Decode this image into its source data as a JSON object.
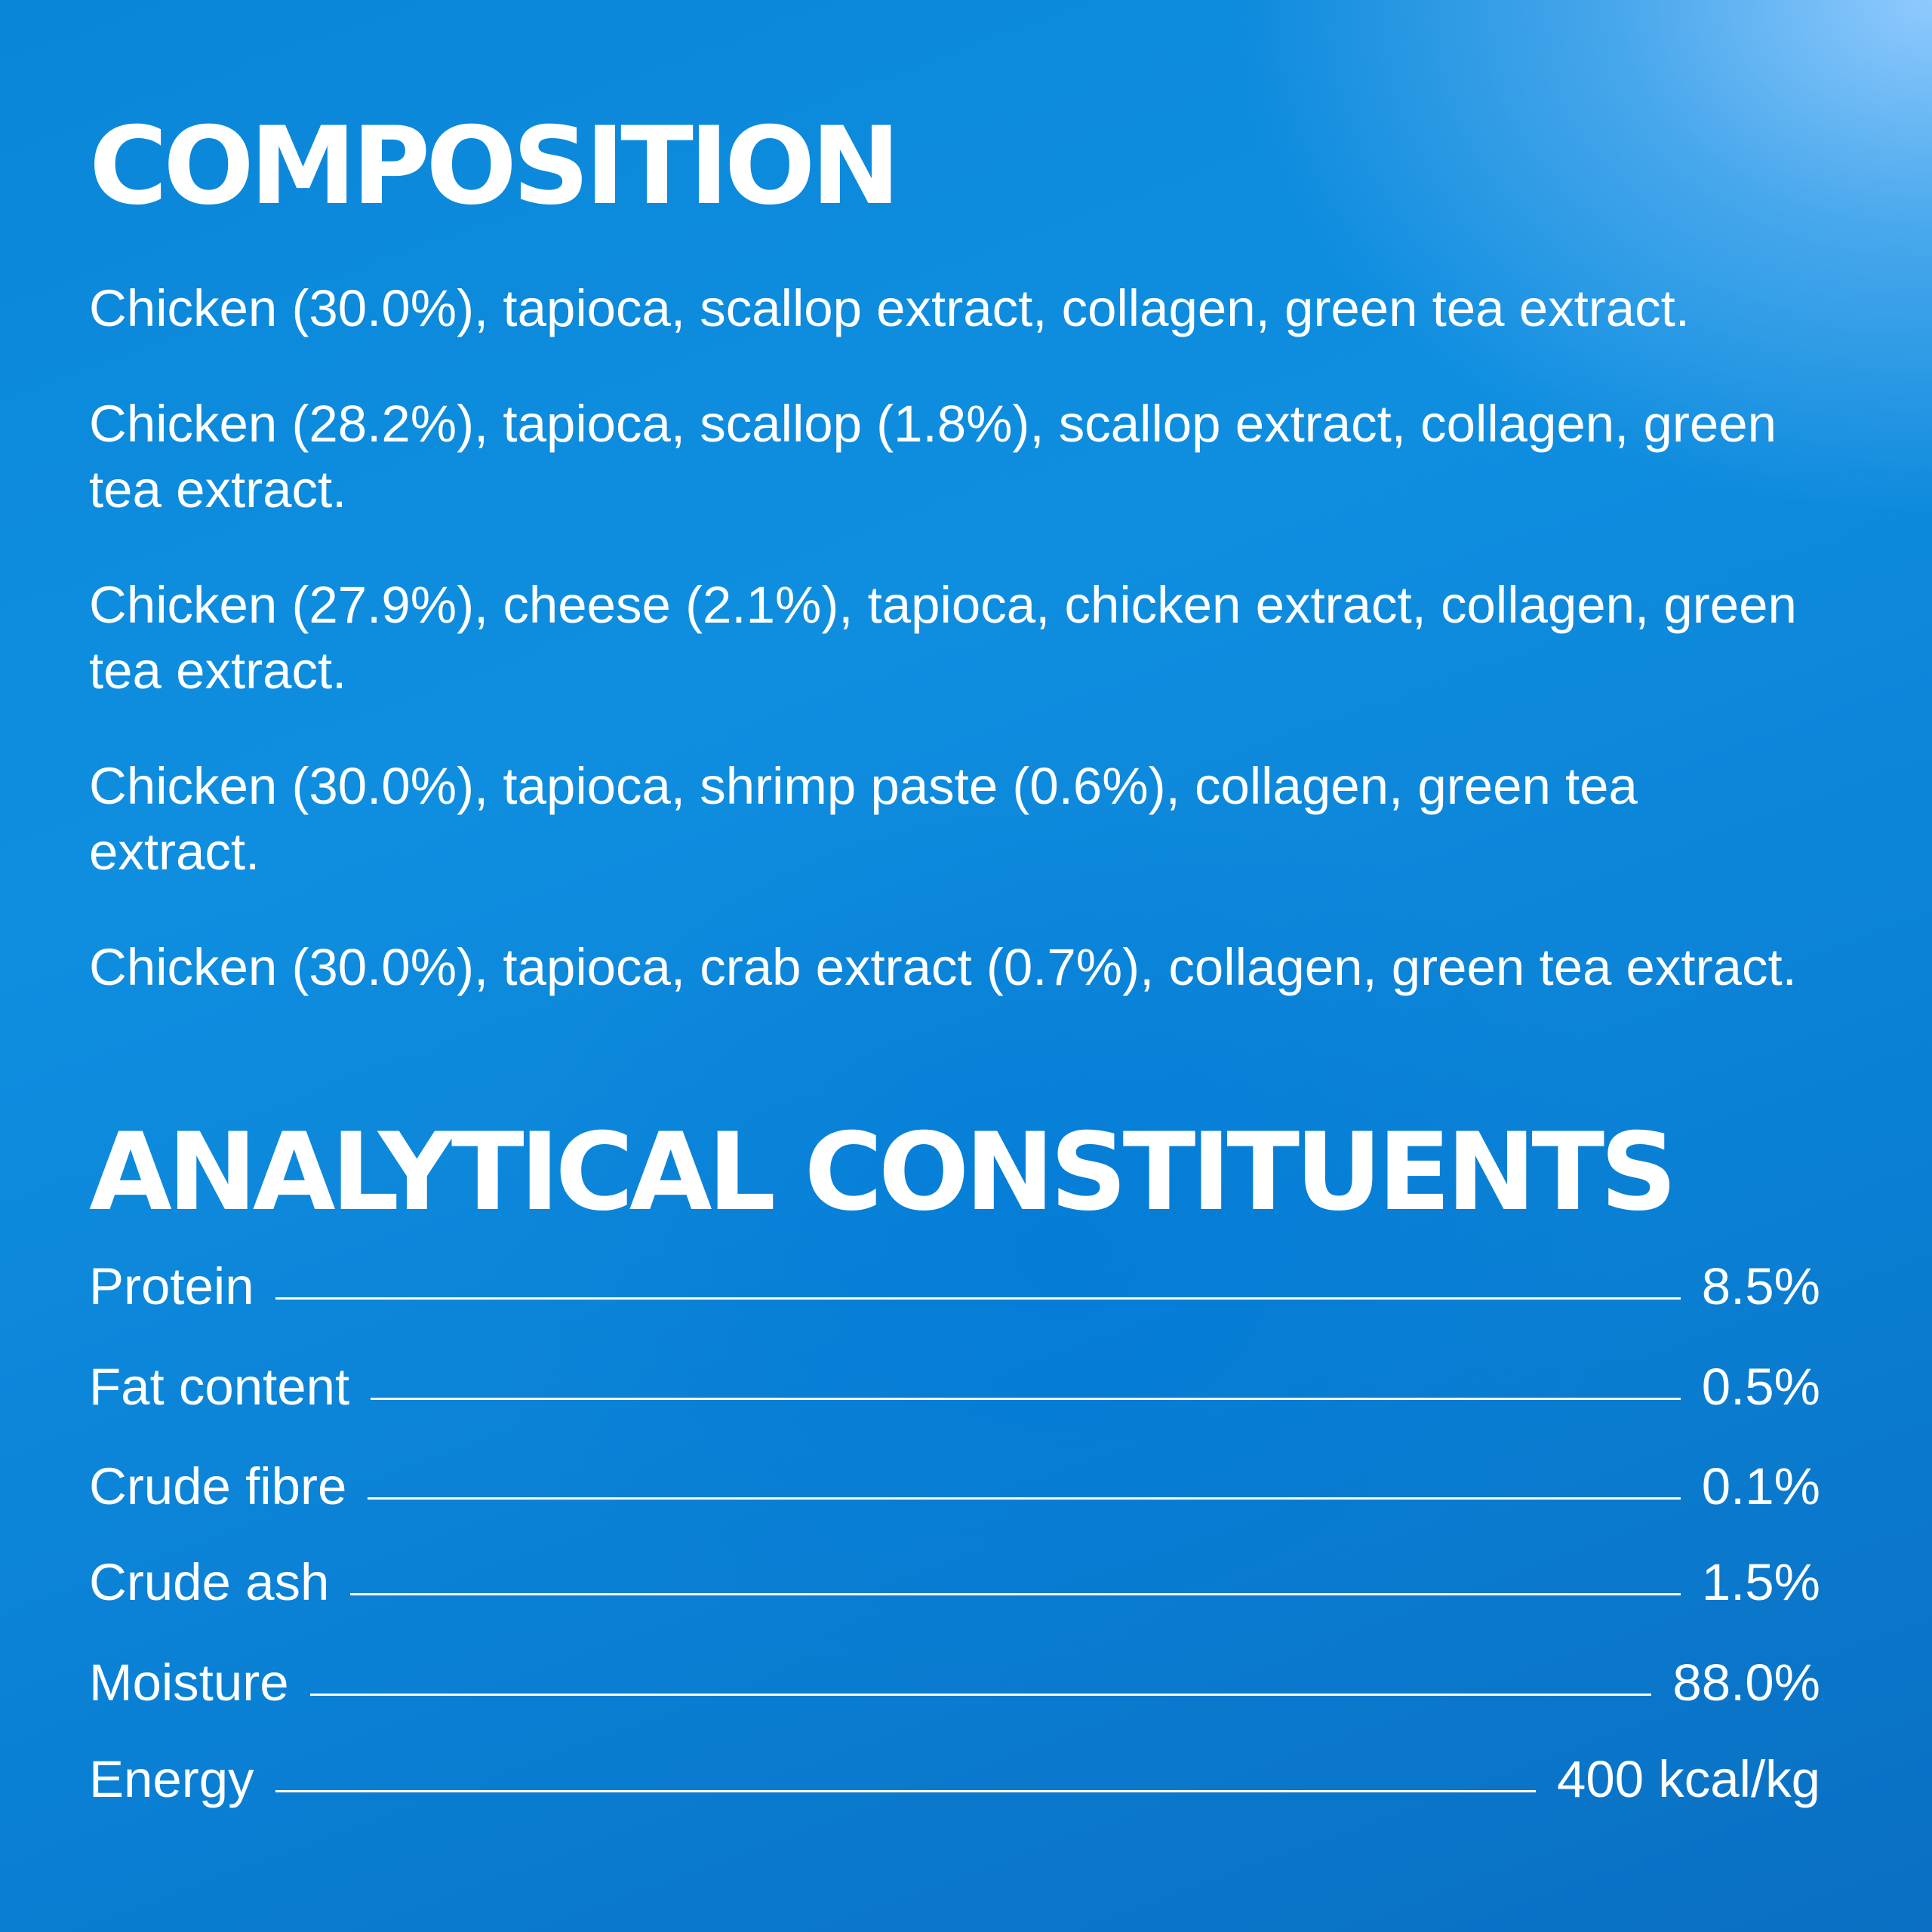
{
  "composition": {
    "title": "COMPOSITION",
    "items": [
      "Chicken (30.0%), tapioca, scallop extract, collagen, green tea extract.",
      "Chicken (28.2%), tapioca, scallop (1.8%), scallop extract, collagen, green tea extract.",
      "Chicken (27.9%), cheese (2.1%), tapioca, chicken extract, collagen, green tea extract.",
      "Chicken (30.0%), tapioca, shrimp paste (0.6%), collagen, green tea extract.",
      "Chicken (30.0%), tapioca, crab extract (0.7%), collagen, green tea extract."
    ]
  },
  "analytical": {
    "title": "ANALYTICAL CONSTITUENTS",
    "rows": [
      {
        "label": "Protein",
        "value": "8.5%"
      },
      {
        "label": "Fat content",
        "value": "0.5%"
      },
      {
        "label": "Crude fibre",
        "value": "0.1%"
      },
      {
        "label": "Crude ash",
        "value": "1.5%"
      },
      {
        "label": "Moisture",
        "value": "88.0%"
      },
      {
        "label": "Energy",
        "value": "400 kcal/kg"
      }
    ]
  },
  "colors": {
    "text": "#ffffff",
    "background_primary": "#0a86d8",
    "background_highlight": "#96cdff"
  }
}
